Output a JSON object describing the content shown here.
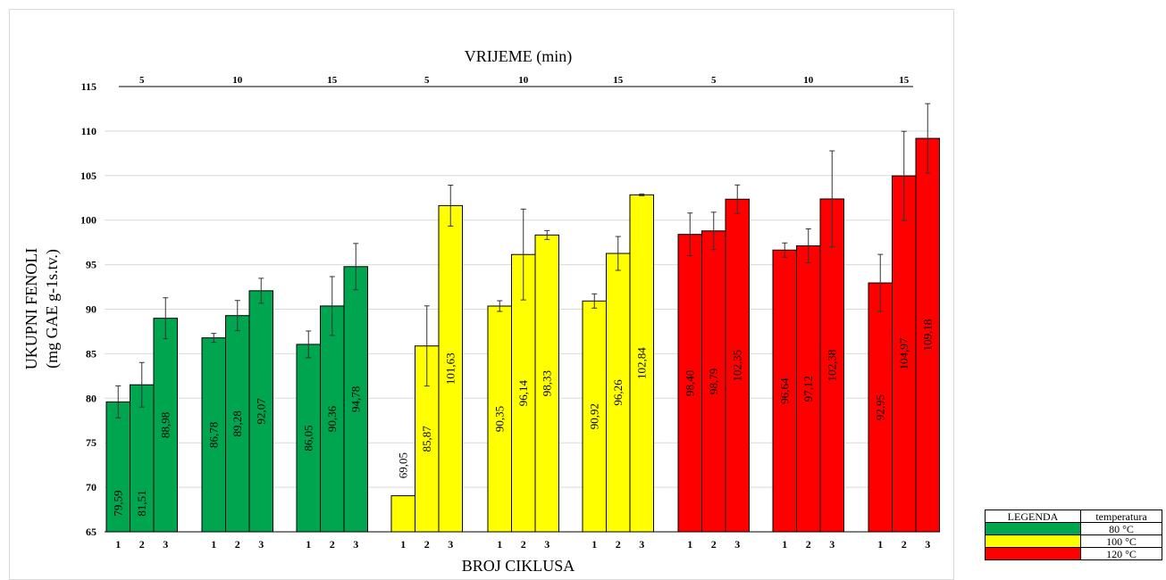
{
  "chart_data": {
    "type": "bar",
    "title": "VRIJEME (min)",
    "xlabel": "BROJ CIKLUSA",
    "ylabel_line1": "UKUPNI FENOLI",
    "ylabel_line2": "(mg GAE g-1s.tv.)",
    "ylim": [
      65,
      115
    ],
    "yticks": [
      65,
      70,
      75,
      80,
      85,
      90,
      95,
      100,
      105,
      110,
      115
    ],
    "grid": true,
    "groups": [
      {
        "time": "5",
        "temperature": "80 °C",
        "color": "#00a550",
        "cycles": [
          "1",
          "2",
          "3"
        ],
        "values": [
          79.59,
          81.51,
          88.98
        ],
        "labels": [
          "79,59",
          "81,51",
          "88,98"
        ],
        "errors": [
          1.8,
          2.5,
          2.3
        ]
      },
      {
        "time": "10",
        "temperature": "80 °C",
        "color": "#00a550",
        "cycles": [
          "1",
          "2",
          "3"
        ],
        "values": [
          86.78,
          89.28,
          92.07
        ],
        "labels": [
          "86,78",
          "89,28",
          "92,07"
        ],
        "errors": [
          0.5,
          1.7,
          1.4
        ]
      },
      {
        "time": "15",
        "temperature": "80 °C",
        "color": "#00a550",
        "cycles": [
          "1",
          "2",
          "3"
        ],
        "values": [
          86.05,
          90.36,
          94.78
        ],
        "labels": [
          "86,05",
          "90,36",
          "94,78"
        ],
        "errors": [
          1.5,
          3.3,
          2.6
        ]
      },
      {
        "time": "5",
        "temperature": "100 °C",
        "color": "#ffff00",
        "cycles": [
          "1",
          "2",
          "3"
        ],
        "values": [
          69.05,
          85.87,
          101.63
        ],
        "labels": [
          "69,05",
          "85,87",
          "101,63"
        ],
        "errors": [
          0,
          4.5,
          2.3
        ]
      },
      {
        "time": "10",
        "temperature": "100 °C",
        "color": "#ffff00",
        "cycles": [
          "1",
          "2",
          "3"
        ],
        "values": [
          90.35,
          96.14,
          98.33
        ],
        "labels": [
          "90,35",
          "96,14",
          "98,33"
        ],
        "errors": [
          0.6,
          5.1,
          0.5
        ]
      },
      {
        "time": "15",
        "temperature": "100 °C",
        "color": "#ffff00",
        "cycles": [
          "1",
          "2",
          "3"
        ],
        "values": [
          90.92,
          96.26,
          102.84
        ],
        "labels": [
          "90,92",
          "96,26",
          "102,84"
        ],
        "errors": [
          0.8,
          1.9,
          0.1
        ]
      },
      {
        "time": "5",
        "temperature": "120 °C",
        "color": "#ff0000",
        "cycles": [
          "1",
          "2",
          "3"
        ],
        "values": [
          98.4,
          98.79,
          102.35
        ],
        "labels": [
          "98,40",
          "98,79",
          "102,35"
        ],
        "errors": [
          2.4,
          2.1,
          1.6
        ]
      },
      {
        "time": "10",
        "temperature": "120 °C",
        "color": "#ff0000",
        "cycles": [
          "1",
          "2",
          "3"
        ],
        "values": [
          96.64,
          97.12,
          102.38
        ],
        "labels": [
          "96,64",
          "97,12",
          "102,38"
        ],
        "errors": [
          0.8,
          1.9,
          5.4
        ]
      },
      {
        "time": "15",
        "temperature": "120 °C",
        "color": "#ff0000",
        "cycles": [
          "1",
          "2",
          "3"
        ],
        "values": [
          92.95,
          104.97,
          109.18
        ],
        "labels": [
          "92,95",
          "104,97",
          "109,18"
        ],
        "errors": [
          3.2,
          5.0,
          3.9
        ]
      }
    ]
  },
  "legend": {
    "header": [
      "LEGENDA",
      "temperatura"
    ],
    "rows": [
      {
        "color": "#00a550",
        "label": "80 °C"
      },
      {
        "color": "#ffff00",
        "label": "100 °C"
      },
      {
        "color": "#ff0000",
        "label": "120 °C"
      }
    ]
  }
}
